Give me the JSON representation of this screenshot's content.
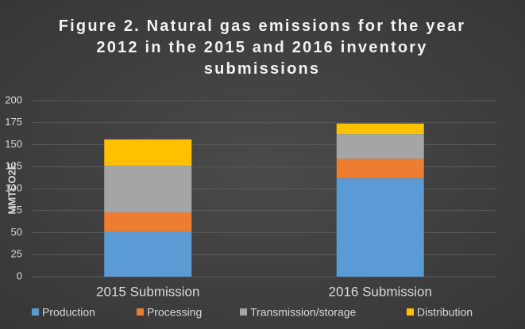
{
  "chart_data": {
    "type": "stacked_bar",
    "title": "Figure 2. Natural gas emissions for the year 2012 in the 2015 and 2016 inventory submissions",
    "y_label": "MMTCO2E",
    "categories": [
      "2015 Submission",
      "2016 Submission"
    ],
    "series": [
      {
        "name": "Production",
        "color": "#5b9bd5",
        "values": [
          51,
          112
        ]
      },
      {
        "name": "Processing",
        "color": "#ed7d31",
        "values": [
          22,
          22
        ]
      },
      {
        "name": "Transmission/storage",
        "color": "#a5a5a5",
        "values": [
          53,
          28
        ]
      },
      {
        "name": "Distribution",
        "color": "#ffc000",
        "values": [
          30,
          12
        ]
      }
    ],
    "ylim": [
      0,
      200
    ],
    "yticks": [
      0,
      25,
      50,
      75,
      100,
      125,
      150,
      175,
      200
    ],
    "grid": true,
    "legend": "bottom"
  }
}
